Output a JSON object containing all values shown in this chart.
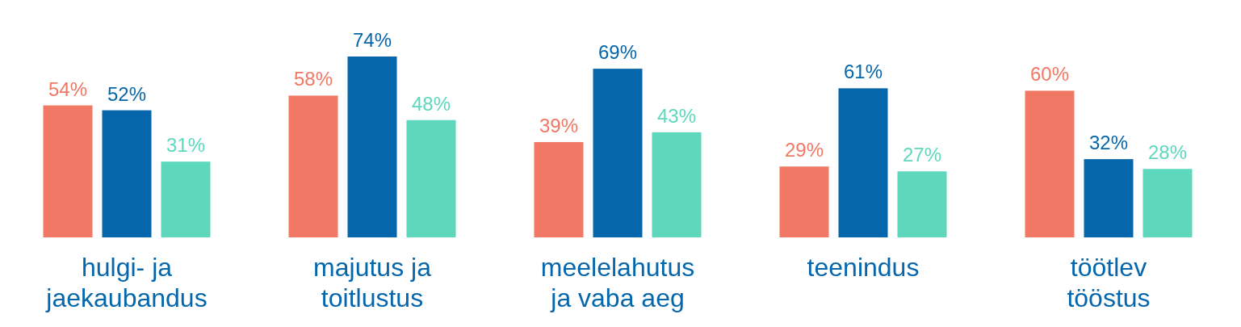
{
  "chart_data": {
    "type": "bar",
    "categories": [
      "hulgi- ja jaekaubandus",
      "majutus ja toitlustus",
      "meelelahutus ja vaba aeg",
      "teenindus",
      "töötlev tööstus"
    ],
    "series": [
      {
        "color": "#f07865",
        "values": [
          54,
          58,
          39,
          29,
          60
        ],
        "value_labels": [
          "54%",
          "58%",
          "39%",
          "29%",
          "60%"
        ]
      },
      {
        "color": "#0566ab",
        "values": [
          52,
          74,
          69,
          61,
          32
        ],
        "value_labels": [
          "52%",
          "74%",
          "69%",
          "61%",
          "32%"
        ]
      },
      {
        "color": "#5ed8bc",
        "values": [
          31,
          48,
          43,
          27,
          28
        ],
        "value_labels": [
          "31%",
          "48%",
          "43%",
          "27%",
          "28%"
        ]
      }
    ]
  }
}
